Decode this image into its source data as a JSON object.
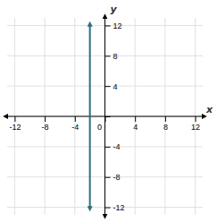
{
  "chart_data": {
    "type": "line",
    "x": [
      -2,
      -2
    ],
    "values": [
      -12,
      12
    ],
    "color": "#2c6e7f",
    "xlim": [
      -13,
      13
    ],
    "ylim": [
      -13,
      13
    ],
    "xticks": [
      -12,
      -8,
      -4,
      0,
      4,
      8,
      12
    ],
    "yticks": [
      -12,
      -8,
      -4,
      {
        "value": 0,
        "label": null
      },
      4,
      8,
      12
    ],
    "xlabel": "x",
    "ylabel": "y",
    "grid": true
  }
}
